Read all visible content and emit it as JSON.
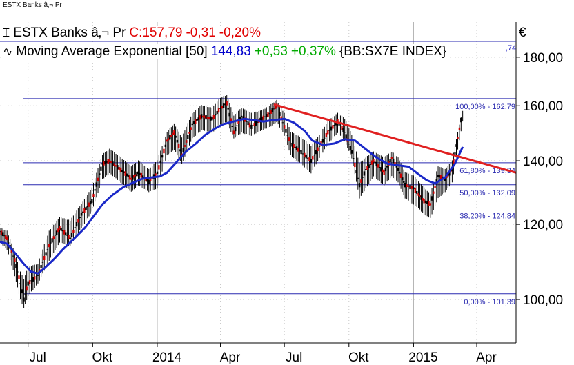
{
  "window": {
    "title": "ESTX Banks â‚¬ Pr"
  },
  "legend": {
    "price": {
      "icon": "ohlc-bar-icon",
      "name": "ESTX Banks â‚¬ Pr",
      "close": "C:157,79",
      "change": "-0,31",
      "change_pct": "-0,20%"
    },
    "ma": {
      "icon": "wave-icon",
      "name": "Moving Average Exponential [50]",
      "value": "144,83",
      "change": "+0,53",
      "change_pct": "+0,37%",
      "ticker": "{BB:SX7E INDEX}"
    },
    "currency": "€",
    "ma_right_value": ",74"
  },
  "colors": {
    "price_bars": "#000000",
    "price_down": "#cc0000",
    "ma_line": "#1a28c8",
    "trend_line": "#e02020",
    "fib_lines": "#2a2ab0",
    "legend_close": "#e00000",
    "legend_ma_value": "#0000cc",
    "legend_ma_change": "#00aa00"
  },
  "chart_data": {
    "type": "line",
    "y_scale": "log",
    "ylim": [
      90,
      196
    ],
    "y_ticks": [
      "180,00",
      "160,00",
      "140,00",
      "120,00",
      "100,00"
    ],
    "y_tick_values": [
      180,
      160,
      140,
      120,
      100
    ],
    "x_ticks": [
      "Jul",
      "Okt",
      "2014",
      "Apr",
      "Jul",
      "Okt",
      "2015",
      "Apr"
    ],
    "x_tick_dates": [
      "2013-07-01",
      "2013-10-01",
      "2014-01-01",
      "2014-04-01",
      "2014-07-01",
      "2014-10-01",
      "2015-01-01",
      "2015-04-01"
    ],
    "xlim": [
      "2013-05-22",
      "2015-05-27"
    ],
    "grid": true,
    "series": [
      {
        "name": "ESTX Banks â‚¬ Pr",
        "kind": "ohlc",
        "x": [
          "2013-05-22",
          "2013-06-01",
          "2013-06-12",
          "2013-06-20",
          "2013-06-25",
          "2013-07-01",
          "2013-07-15",
          "2013-07-31",
          "2013-08-15",
          "2013-08-30",
          "2013-09-15",
          "2013-09-30",
          "2013-10-15",
          "2013-10-25",
          "2013-11-10",
          "2013-11-25",
          "2013-12-05",
          "2013-12-20",
          "2014-01-01",
          "2014-01-15",
          "2014-01-25",
          "2014-02-05",
          "2014-02-20",
          "2014-03-05",
          "2014-03-20",
          "2014-04-01",
          "2014-04-10",
          "2014-04-20",
          "2014-05-01",
          "2014-05-15",
          "2014-05-30",
          "2014-06-10",
          "2014-06-20",
          "2014-07-01",
          "2014-07-10",
          "2014-07-25",
          "2014-08-08",
          "2014-08-20",
          "2014-09-01",
          "2014-09-15",
          "2014-09-25",
          "2014-10-05",
          "2014-10-16",
          "2014-10-25",
          "2014-11-05",
          "2014-11-20",
          "2014-12-01",
          "2014-12-10",
          "2014-12-20",
          "2015-01-01",
          "2015-01-08",
          "2015-01-16",
          "2015-01-25",
          "2015-02-05",
          "2015-02-15",
          "2015-02-25",
          "2015-03-05",
          "2015-03-12"
        ],
        "values": [
          118,
          116,
          110,
          104,
          100,
          104,
          106,
          114,
          119,
          116,
          123,
          127,
          139,
          140,
          137,
          134,
          136,
          133,
          136,
          147,
          150,
          142,
          153,
          156,
          155,
          159,
          161,
          150,
          156,
          152,
          155,
          157,
          160,
          152,
          146,
          143,
          140,
          145,
          150,
          154,
          150,
          143,
          132,
          137,
          140,
          136,
          141,
          137,
          132,
          131,
          129,
          127,
          126,
          135,
          134,
          137,
          148,
          157.79
        ],
        "high": [
          119,
          118,
          112,
          107,
          105,
          108,
          109,
          118,
          122,
          121,
          126,
          131,
          142,
          144,
          141,
          138,
          140,
          137,
          140,
          150,
          153,
          148,
          157,
          160,
          159,
          163,
          164,
          156,
          159,
          157,
          158,
          160,
          162,
          157,
          150,
          148,
          145,
          149,
          154,
          157,
          155,
          149,
          139,
          141,
          143,
          141,
          143,
          141,
          136,
          135,
          133,
          131,
          129,
          138,
          137,
          140,
          150,
          158
        ],
        "low": [
          115,
          113,
          106,
          100,
          98,
          101,
          104,
          110,
          115,
          114,
          119,
          124,
          134,
          136,
          133,
          130,
          132,
          130,
          131,
          142,
          144,
          139,
          148,
          151,
          150,
          153,
          154,
          148,
          150,
          149,
          151,
          152,
          154,
          149,
          142,
          139,
          136,
          141,
          146,
          150,
          147,
          141,
          128,
          131,
          135,
          132,
          135,
          133,
          128,
          126,
          125,
          123,
          122,
          128,
          130,
          133,
          144,
          154
        ]
      },
      {
        "name": "Moving Average Exponential [50]",
        "kind": "line",
        "x": [
          "2013-05-22",
          "2013-06-01",
          "2013-06-12",
          "2013-06-25",
          "2013-07-05",
          "2013-07-15",
          "2013-07-25",
          "2013-08-08",
          "2013-08-20",
          "2013-09-05",
          "2013-09-20",
          "2013-10-01",
          "2013-10-15",
          "2013-10-30",
          "2013-11-15",
          "2013-11-30",
          "2013-12-10",
          "2013-12-25",
          "2014-01-05",
          "2014-01-15",
          "2014-01-30",
          "2014-02-10",
          "2014-02-25",
          "2014-03-10",
          "2014-03-25",
          "2014-04-05",
          "2014-04-20",
          "2014-05-05",
          "2014-05-20",
          "2014-06-01",
          "2014-06-15",
          "2014-07-01",
          "2014-07-15",
          "2014-07-30",
          "2014-08-10",
          "2014-08-25",
          "2014-09-10",
          "2014-09-25",
          "2014-10-10",
          "2014-10-25",
          "2014-11-10",
          "2014-11-25",
          "2014-12-10",
          "2014-12-25",
          "2015-01-08",
          "2015-01-20",
          "2015-02-01",
          "2015-02-15",
          "2015-03-01",
          "2015-03-12"
        ],
        "values": [
          115,
          114.5,
          112,
          109,
          107,
          106.5,
          108,
          110.5,
          113,
          116,
          119,
          122,
          126,
          129,
          131.5,
          133,
          134,
          134.5,
          134.8,
          136,
          140,
          143,
          146,
          149,
          151.5,
          153,
          154,
          155,
          154.5,
          154,
          154.5,
          155,
          153.5,
          150.5,
          147,
          145.5,
          146,
          147.5,
          147,
          144,
          141,
          139,
          138.5,
          138,
          135.5,
          133.5,
          132.5,
          134.5,
          139,
          144.83
        ]
      },
      {
        "name": "",
        "kind": "trend_line",
        "x": [
          "2014-06-16",
          "2015-05-27"
        ],
        "values": [
          160.5,
          136
        ]
      }
    ],
    "fibonacci_levels": [
      {
        "label": "100,00% - 162,79",
        "value": 162.79
      },
      {
        "label": "61,80% - 139,34",
        "value": 139.34
      },
      {
        "label": "50,00% - 132,09",
        "value": 132.09
      },
      {
        "label": "38,20% - 124,84",
        "value": 124.84
      },
      {
        "label": "0,00% - 101,39",
        "value": 101.39
      }
    ]
  }
}
